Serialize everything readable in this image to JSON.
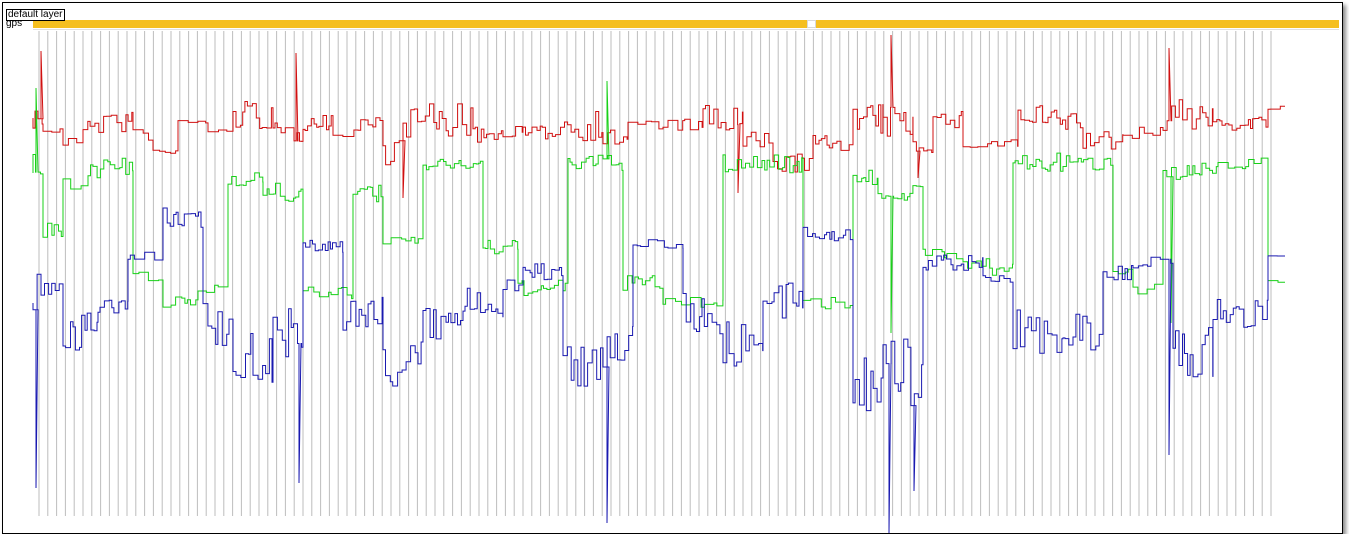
{
  "layer": {
    "name": "default layer"
  },
  "track": {
    "label": "gps"
  },
  "colors": {
    "gps_bar": "#f5bf1f",
    "series_red": "#d01010",
    "series_green": "#18d018",
    "series_blue": "#1a1ab0",
    "gridline": "#bdbdbd"
  }
}
